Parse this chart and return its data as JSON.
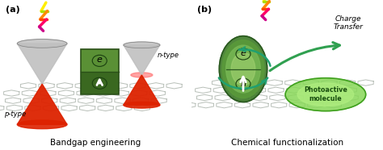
{
  "fig_width": 4.74,
  "fig_height": 1.86,
  "dpi": 100,
  "background_color": "#ffffff",
  "panel_a_label": "(a)",
  "panel_b_label": "(b)",
  "panel_a_title": "Bandgap engineering",
  "panel_b_title": "Chemical functionalization",
  "charge_transfer_text": "Charge\nTransfer",
  "photoactive_text": "Photoactive\nmolecule",
  "n_type_text": "n-type",
  "p_type_text": "p-type",
  "gray_cone_color": "#c0c0c0",
  "gray_cone_dark": "#808080",
  "red_cone_color": "#dd2200",
  "red_cone_dark": "#991100",
  "green_rect_top": "#4a8030",
  "green_rect_bottom": "#7ab050",
  "green_oval_dark": "#3a7025",
  "green_oval_light": "#90c870",
  "photoactive_color": "#b0e890",
  "photoactive_edge": "#50a830",
  "teal_arrow": "#20a070",
  "font_size_title": 7.5,
  "font_size_panel": 8,
  "font_size_label": 6
}
